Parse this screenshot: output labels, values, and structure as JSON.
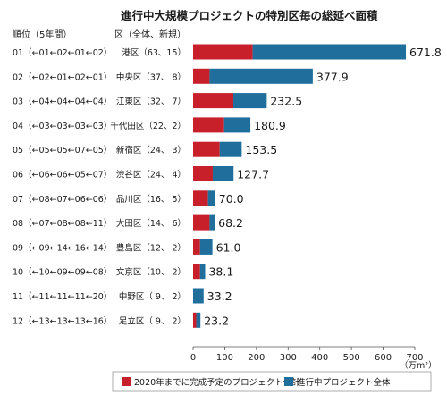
{
  "chart_data": {
    "type": "bar",
    "orientation": "horizontal",
    "stacked": true,
    "title": "進行中大規模プロジェクトの特別区毎の総延べ面積",
    "rank_header": "順位（5年間）",
    "ward_header": "区（全体、新規）",
    "unit_label": "（万m²）",
    "xlim": [
      0,
      700
    ],
    "x_ticks": [
      0,
      100,
      200,
      300,
      400,
      500,
      600,
      700
    ],
    "grid": false,
    "legend_position": "bottom",
    "colors": {
      "completed": "#c8202a",
      "remaining": "#1f6e9c"
    },
    "categories": [
      {
        "rank": "01（←01←02←01←02）",
        "ward": "港区（63、15）",
        "completed": 188,
        "total": 671.8,
        "total_label": "671.8"
      },
      {
        "rank": "02（←02←01←02←01）",
        "ward": "中央区（37、 8）",
        "completed": 52,
        "total": 377.9,
        "total_label": "377.9"
      },
      {
        "rank": "03（←04←04←04←04）",
        "ward": "江東区（32、 7）",
        "completed": 127,
        "total": 232.5,
        "total_label": "232.5"
      },
      {
        "rank": "04（←03←03←03←03）",
        "ward": "千代田区（22、2）",
        "completed": 98,
        "total": 180.9,
        "total_label": "180.9"
      },
      {
        "rank": "05（←05←05←07←05）",
        "ward": "新宿区（24、 3）",
        "completed": 84,
        "total": 153.5,
        "total_label": "153.5"
      },
      {
        "rank": "06（←06←06←05←07）",
        "ward": "渋谷区（24、 4）",
        "completed": 62,
        "total": 127.7,
        "total_label": "127.7"
      },
      {
        "rank": "07（←08←07←06←06）",
        "ward": "品川区（16、 5）",
        "completed": 47,
        "total": 70.0,
        "total_label": "70.0"
      },
      {
        "rank": "08（←07←08←08←11）",
        "ward": "大田区（14、 6）",
        "completed": 52,
        "total": 68.2,
        "total_label": "68.2"
      },
      {
        "rank": "09（←09←14←16←14）",
        "ward": "豊島区（12、 2）",
        "completed": 22,
        "total": 61.0,
        "total_label": "61.0"
      },
      {
        "rank": "10（←10←09←09←08）",
        "ward": "文京区（10、 2）",
        "completed": 22,
        "total": 38.1,
        "total_label": "38.1"
      },
      {
        "rank": "11（←11←11←11←20）",
        "ward": "中野区（ 9、 2）",
        "completed": 0,
        "total": 33.2,
        "total_label": "33.2"
      },
      {
        "rank": "12（←13←13←13←16）",
        "ward": "足立区（ 9、 2）",
        "completed": 10,
        "total": 23.2,
        "total_label": "23.2"
      }
    ],
    "series": [
      {
        "key": "completed",
        "name": "2020年までに完成予定のプロジェクト合計"
      },
      {
        "key": "remaining",
        "name": "進行中プロジェクト全体"
      }
    ]
  }
}
